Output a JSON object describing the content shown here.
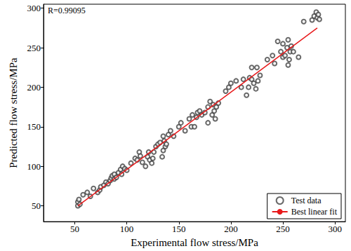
{
  "chart_data": {
    "type": "scatter",
    "x_label": "Experimental flow stress/MPa",
    "y_label": "Predicted flow stress/MPa",
    "annotation": "R=0.99095",
    "xlim": [
      20,
      310
    ],
    "ylim": [
      30,
      305
    ],
    "xticks": [
      50,
      100,
      150,
      200,
      250,
      300
    ],
    "yticks": [
      50,
      100,
      150,
      200,
      250,
      300
    ],
    "grid": false,
    "legend": "lower right",
    "series": [
      {
        "name": "Test data",
        "type": "scatter",
        "marker": "emptyCircle",
        "color": "#444444",
        "x": [
          53,
          53,
          54,
          55,
          58,
          62,
          65,
          68,
          72,
          74,
          75,
          78,
          80,
          82,
          84,
          85,
          86,
          88,
          88,
          90,
          92,
          94,
          95,
          96,
          98,
          100,
          104,
          108,
          110,
          112,
          113,
          115,
          118,
          120,
          121,
          122,
          124,
          125,
          126,
          128,
          130,
          132,
          134,
          135,
          135,
          136,
          137,
          138,
          140,
          142,
          145,
          150,
          152,
          156,
          160,
          162,
          163,
          165,
          167,
          168,
          170,
          172,
          175,
          178,
          178,
          180,
          182,
          183,
          184,
          185,
          186,
          188,
          195,
          198,
          200,
          205,
          210,
          212,
          215,
          217,
          218,
          220,
          220,
          222,
          224,
          225,
          226,
          228,
          235,
          240,
          242,
          245,
          248,
          250,
          250,
          252,
          254,
          255,
          255,
          256,
          257,
          258,
          260,
          265,
          270,
          278,
          280,
          282,
          283,
          284,
          285
        ],
        "values": [
          50,
          55,
          58,
          52,
          64,
          67,
          62,
          72,
          67,
          70,
          74,
          76,
          80,
          78,
          82,
          85,
          88,
          84,
          90,
          86,
          92,
          96,
          90,
          100,
          97,
          95,
          104,
          110,
          108,
          118,
          113,
          105,
          100,
          112,
          118,
          108,
          104,
          110,
          118,
          125,
          128,
          130,
          112,
          120,
          138,
          132,
          125,
          128,
          140,
          145,
          138,
          150,
          155,
          145,
          160,
          150,
          165,
          150,
          162,
          168,
          170,
          165,
          168,
          155,
          175,
          182,
          165,
          178,
          170,
          160,
          175,
          180,
          195,
          200,
          205,
          208,
          200,
          210,
          190,
          200,
          212,
          210,
          225,
          205,
          198,
          225,
          208,
          215,
          235,
          240,
          230,
          258,
          245,
          238,
          255,
          240,
          250,
          260,
          228,
          235,
          245,
          252,
          245,
          238,
          283,
          285,
          290,
          295,
          288,
          292,
          286
        ]
      },
      {
        "name": "Best linear fit",
        "type": "line",
        "line_style": "solid",
        "color": "#e8191b",
        "x": [
          53,
          283
        ],
        "values": [
          50,
          275
        ]
      }
    ]
  }
}
